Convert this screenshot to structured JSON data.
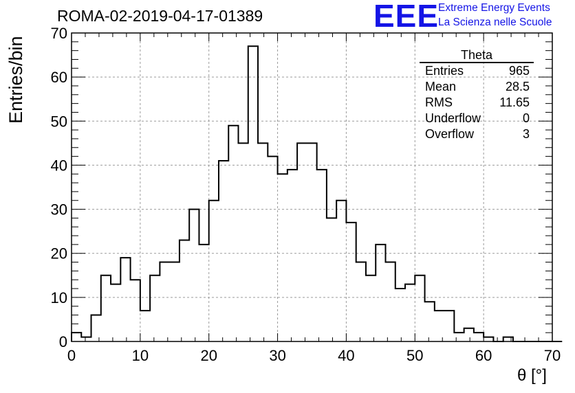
{
  "title": "ROMA-02-2019-04-17-01389",
  "logo": {
    "mark": "EEE",
    "line1": "Extreme Energy Events",
    "line2": "La Scienza nelle Scuole",
    "color": "#1414e6"
  },
  "stats": {
    "name": "Theta",
    "rows": [
      {
        "label": "Entries",
        "value": "965"
      },
      {
        "label": "Mean",
        "value": "28.5"
      },
      {
        "label": "RMS",
        "value": "11.65"
      },
      {
        "label": "Underflow",
        "value": "0"
      },
      {
        "label": "Overflow",
        "value": "3"
      }
    ]
  },
  "chart_data": {
    "type": "bar",
    "histogram": true,
    "title": "ROMA-02-2019-04-17-01389",
    "xlabel": "θ [°]",
    "ylabel": "Entries/bin",
    "xlim": [
      0,
      70
    ],
    "ylim": [
      0,
      70
    ],
    "xticks": [
      0,
      10,
      20,
      30,
      40,
      50,
      60,
      70
    ],
    "yticks": [
      0,
      10,
      20,
      30,
      40,
      50,
      60,
      70
    ],
    "grid": true,
    "bin_width": 1.4286,
    "bin_edges_start": 0,
    "values": [
      2,
      1,
      6,
      15,
      13,
      19,
      14,
      7,
      15,
      18,
      18,
      23,
      30,
      22,
      32,
      41,
      49,
      45,
      67,
      45,
      42,
      38,
      39,
      45,
      45,
      39,
      28,
      32,
      27,
      18,
      15,
      22,
      18,
      12,
      13,
      15,
      9,
      7,
      7,
      2,
      3,
      2,
      1,
      0,
      1,
      0,
      0,
      0,
      0,
      0
    ],
    "line_color": "#000000",
    "stats_box": "top-right"
  }
}
